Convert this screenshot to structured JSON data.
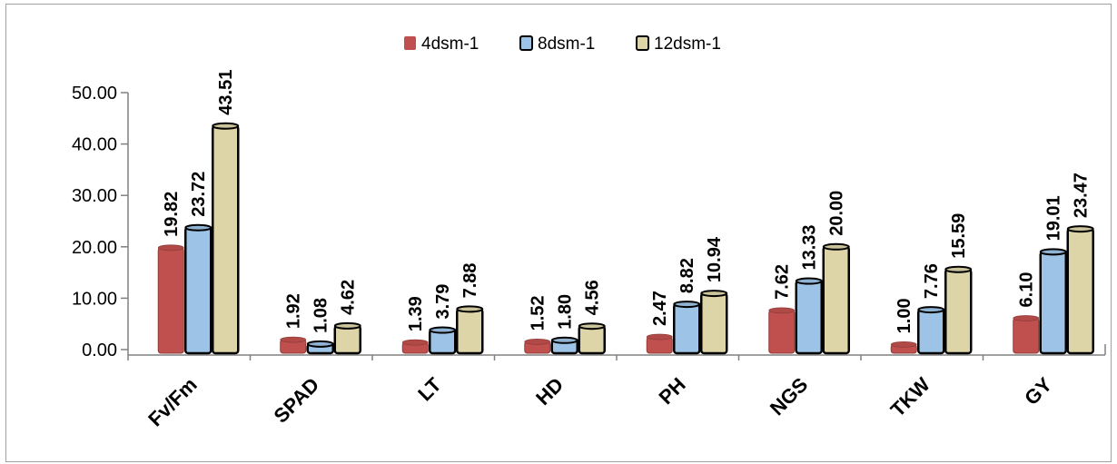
{
  "chart_data": {
    "type": "bar",
    "title": "",
    "xlabel": "",
    "ylabel": "",
    "categories": [
      "Fv/Fm",
      "SPAD",
      "LT",
      "HD",
      "PH",
      "NGS",
      "TKW",
      "GY"
    ],
    "series": [
      {
        "name": "4dsm-1",
        "color": "#c0504d",
        "values": [
          19.82,
          1.92,
          1.39,
          1.52,
          2.47,
          7.62,
          1.0,
          6.1
        ]
      },
      {
        "name": "8dsm-1",
        "color": "#9dc3e6",
        "values": [
          23.72,
          1.08,
          3.79,
          1.8,
          8.82,
          13.33,
          7.76,
          19.01
        ]
      },
      {
        "name": "12dsm-1",
        "color": "#ddd5a8",
        "values": [
          43.51,
          4.62,
          7.88,
          4.56,
          10.94,
          20.0,
          15.59,
          23.47
        ]
      }
    ],
    "value_labels": [
      [
        "19.82",
        "1.92",
        "1.39",
        "1.52",
        "2.47",
        "7.62",
        "1.00",
        "6.10"
      ],
      [
        "23.72",
        "1.08",
        "3.79",
        "1.80",
        "8.82",
        "13.33",
        "7.76",
        "19.01"
      ],
      [
        "43.51",
        "4.62",
        "7.88",
        "4.56",
        "10.94",
        "20.00",
        "15.59",
        "23.47"
      ]
    ],
    "yticks": [
      "0.00",
      "10.00",
      "20.00",
      "30.00",
      "40.00",
      "50.00"
    ],
    "ylim": [
      0,
      50
    ],
    "grid": false,
    "legend_position": "top"
  }
}
